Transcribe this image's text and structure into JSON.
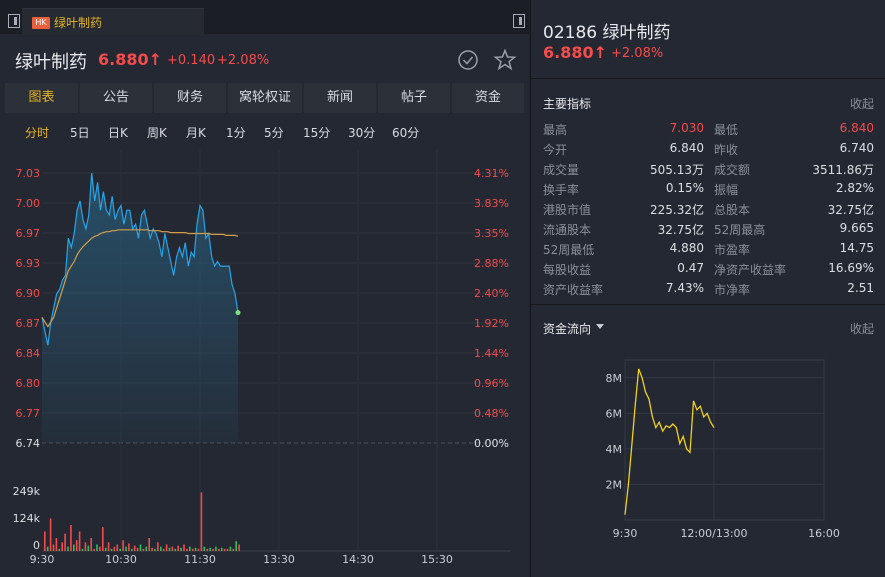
{
  "tab": {
    "badge": "HK",
    "title": "绿叶制药"
  },
  "header": {
    "name": "绿叶制药",
    "price": "6.880",
    "arrow": "↑",
    "change": "+0.140",
    "change_pct": "+2.08%"
  },
  "nav_tabs": [
    "图表",
    "公告",
    "财务",
    "窝轮权证",
    "新闻",
    "帖子",
    "资金"
  ],
  "periods": [
    "分时",
    "5日",
    "日K",
    "周K",
    "月K",
    "1分",
    "5分",
    "15分",
    "30分",
    "60分"
  ],
  "colors": {
    "up": "#f44b4b",
    "down": "#2fbf5f",
    "accent": "#e6b422",
    "price_line": "#27a5e8",
    "avg_line": "#d4a04a",
    "flow_line": "#f0d020"
  },
  "chart_data": [
    {
      "type": "line",
      "y_labels": [
        "7.03",
        "7.00",
        "6.97",
        "6.93",
        "6.90",
        "6.87",
        "6.84",
        "6.80",
        "6.77",
        "6.74"
      ],
      "pct_labels": [
        "4.31%",
        "3.83%",
        "3.35%",
        "2.88%",
        "2.40%",
        "1.92%",
        "1.44%",
        "0.96%",
        "0.48%",
        "0.00%"
      ],
      "ylim": [
        6.74,
        7.03
      ],
      "prev_close": 6.74,
      "x_labels": [
        "9:30",
        "10:30",
        "11:30",
        "13:30",
        "14:30",
        "15:30"
      ],
      "series": [
        {
          "values": [
            6.875,
            6.86,
            6.845,
            6.87,
            6.885,
            6.9,
            6.905,
            6.915,
            6.92,
            6.96,
            6.95,
            6.965,
            6.99,
            7.0,
            6.98,
            6.97,
            6.985,
            7.03,
            7.0,
            7.02,
            6.99,
            7.01,
            6.99,
            6.985,
            7.005,
            6.98,
            6.99,
            6.995,
            6.975,
            6.99,
            6.99,
            6.97,
            6.975,
            6.96,
            6.985,
            6.99,
            6.975,
            6.96,
            6.97,
            6.965,
            6.955,
            6.94,
            6.965,
            6.95,
            6.935,
            6.92,
            6.94,
            6.95,
            6.94,
            6.955,
            6.93,
            6.945,
            6.94,
            6.975,
            6.995,
            6.99,
            6.96,
            6.965,
            6.94,
            6.93,
            6.935,
            6.93,
            6.93,
            6.93,
            6.93,
            6.91,
            6.9,
            6.88
          ]
        },
        {
          "values": [
            6.875,
            6.87,
            6.865,
            6.87,
            6.875,
            6.885,
            6.895,
            6.905,
            6.915,
            6.925,
            6.93,
            6.935,
            6.942,
            6.947,
            6.951,
            6.954,
            6.957,
            6.96,
            6.962,
            6.963,
            6.965,
            6.966,
            6.967,
            6.967,
            6.968,
            6.968,
            6.969,
            6.969,
            6.969,
            6.969,
            6.969,
            6.969,
            6.969,
            6.969,
            6.969,
            6.969,
            6.969,
            6.968,
            6.968,
            6.968,
            6.968,
            6.967,
            6.967,
            6.967,
            6.966,
            6.966,
            6.966,
            6.966,
            6.966,
            6.966,
            6.965,
            6.965,
            6.965,
            6.965,
            6.965,
            6.965,
            6.965,
            6.965,
            6.964,
            6.964,
            6.964,
            6.964,
            6.964,
            6.963,
            6.963,
            6.963,
            6.963,
            6.962
          ]
        }
      ],
      "volume": {
        "y_labels": [
          "249k",
          "124k",
          "0"
        ],
        "ylim": [
          0,
          249000
        ],
        "values": [
          90000,
          20000,
          150000,
          30000,
          60000,
          10000,
          40000,
          80000,
          20000,
          120000,
          30000,
          50000,
          90000,
          10000,
          40000,
          25000,
          60000,
          10000,
          30000,
          20000,
          110000,
          15000,
          40000,
          10000,
          20000,
          30000,
          10000,
          50000,
          20000,
          35000,
          10000,
          25000,
          15000,
          30000,
          10000,
          20000,
          60000,
          15000,
          10000,
          40000,
          20000,
          10000,
          30000,
          15000,
          20000,
          10000,
          25000,
          15000,
          30000,
          10000,
          20000,
          10000,
          15000,
          10000,
          270000,
          20000,
          10000,
          15000,
          10000,
          20000,
          10000,
          15000,
          10000,
          10000,
          20000,
          10000,
          45000,
          30000
        ],
        "up": [
          true,
          false,
          true,
          true,
          true,
          false,
          true,
          true,
          false,
          true,
          false,
          true,
          true,
          false,
          true,
          false,
          true,
          true,
          false,
          true,
          true,
          false,
          true,
          false,
          true,
          true,
          false,
          true,
          false,
          true,
          false,
          true,
          true,
          false,
          true,
          false,
          true,
          true,
          false,
          true,
          false,
          true,
          true,
          false,
          true,
          false,
          true,
          false,
          true,
          true,
          false,
          true,
          false,
          true,
          true,
          false,
          true,
          false,
          true,
          false,
          true,
          false,
          true,
          true,
          false,
          true,
          false,
          true
        ]
      }
    },
    {
      "type": "line",
      "y_labels": [
        "8M",
        "6M",
        "4M",
        "2M"
      ],
      "ylim": [
        0,
        9000000
      ],
      "x_labels": [
        "9:30",
        "12:00/13:00",
        "16:00"
      ],
      "series": [
        {
          "values": [
            300000,
            2000000,
            4200000,
            6500000,
            8500000,
            8000000,
            7200000,
            6800000,
            5800000,
            5200000,
            5500000,
            5000000,
            5300000,
            5200000,
            5400000,
            5200000,
            4300000,
            4700000,
            4000000,
            3800000,
            6700000,
            6200000,
            6400000,
            5800000,
            6000000,
            5500000,
            5200000
          ]
        }
      ]
    }
  ],
  "right": {
    "code": "02186",
    "name": "绿叶制药",
    "price": "6.880",
    "arrow": "↑",
    "change_pct": "+2.08%",
    "indicators_title": "主要指标",
    "collapse": "收起",
    "indicators": [
      [
        "最高",
        "7.030",
        "最低",
        "6.840"
      ],
      [
        "今开",
        "6.840",
        "昨收",
        "6.740"
      ],
      [
        "成交量",
        "505.13万",
        "成交额",
        "3511.86万"
      ],
      [
        "换手率",
        "0.15%",
        "振幅",
        "2.82%"
      ],
      [
        "港股市值",
        "225.32亿",
        "总股本",
        "32.75亿"
      ],
      [
        "流通股本",
        "32.75亿",
        "52周最高",
        "9.665"
      ],
      [
        "52周最低",
        "4.880",
        "市盈率",
        "14.75"
      ],
      [
        "每股收益",
        "0.47",
        "净资产收益率",
        "16.69%"
      ],
      [
        "资产收益率",
        "7.43%",
        "市净率",
        "2.51"
      ]
    ],
    "flow_title": "资金流向",
    "flow_collapse": "收起"
  }
}
